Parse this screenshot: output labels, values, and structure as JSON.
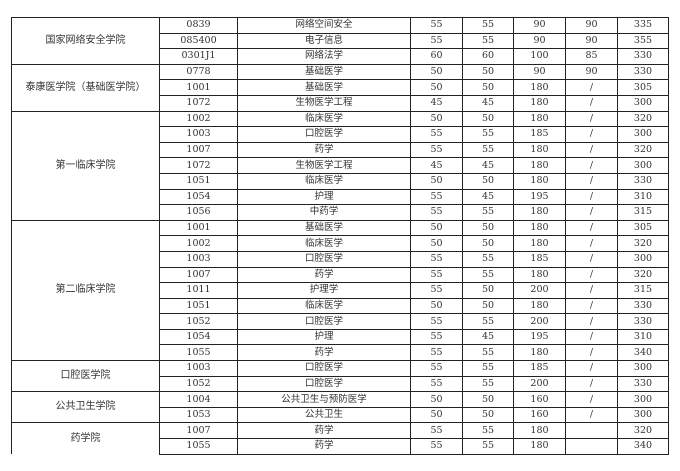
{
  "groups": [
    {
      "college": "国家网络安全学院",
      "rows": [
        [
          "0839",
          "网络空间安全",
          "55",
          "55",
          "90",
          "90",
          "335"
        ],
        [
          "085400",
          "电子信息",
          "55",
          "55",
          "90",
          "90",
          "355"
        ],
        [
          "0301J1",
          "网络法学",
          "60",
          "60",
          "100",
          "85",
          "330"
        ]
      ]
    },
    {
      "college": "泰康医学院（基础医学院）",
      "rows": [
        [
          "0778",
          "基础医学",
          "50",
          "50",
          "90",
          "90",
          "330"
        ],
        [
          "1001",
          "基础医学",
          "50",
          "50",
          "180",
          "/",
          "305"
        ],
        [
          "1072",
          "生物医学工程",
          "45",
          "45",
          "180",
          "/",
          "300"
        ]
      ]
    },
    {
      "college": "第一临床学院",
      "rows": [
        [
          "1002",
          "临床医学",
          "50",
          "50",
          "180",
          "/",
          "320"
        ],
        [
          "1003",
          "口腔医学",
          "55",
          "55",
          "185",
          "/",
          "300"
        ],
        [
          "1007",
          "药学",
          "55",
          "55",
          "180",
          "/",
          "320"
        ],
        [
          "1072",
          "生物医学工程",
          "45",
          "45",
          "180",
          "/",
          "300"
        ],
        [
          "1051",
          "临床医学",
          "50",
          "50",
          "180",
          "/",
          "330"
        ],
        [
          "1054",
          "护理",
          "55",
          "45",
          "195",
          "/",
          "310"
        ],
        [
          "1056",
          "中药学",
          "55",
          "55",
          "180",
          "/",
          "315"
        ]
      ]
    },
    {
      "college": "第二临床学院",
      "rows": [
        [
          "1001",
          "基础医学",
          "50",
          "50",
          "180",
          "/",
          "305"
        ],
        [
          "1002",
          "临床医学",
          "50",
          "50",
          "180",
          "/",
          "320"
        ],
        [
          "1003",
          "口腔医学",
          "55",
          "55",
          "185",
          "/",
          "300"
        ],
        [
          "1007",
          "药学",
          "55",
          "55",
          "180",
          "/",
          "320"
        ],
        [
          "1011",
          "护理学",
          "55",
          "50",
          "200",
          "/",
          "315"
        ],
        [
          "1051",
          "临床医学",
          "50",
          "50",
          "180",
          "/",
          "330"
        ],
        [
          "1052",
          "口腔医学",
          "55",
          "55",
          "200",
          "/",
          "330"
        ],
        [
          "1054",
          "护理",
          "55",
          "45",
          "195",
          "/",
          "310"
        ],
        [
          "1055",
          "药学",
          "55",
          "55",
          "180",
          "/",
          "340"
        ]
      ]
    },
    {
      "college": "口腔医学院",
      "rows": [
        [
          "1003",
          "口腔医学",
          "55",
          "55",
          "185",
          "/",
          "300"
        ],
        [
          "1052",
          "口腔医学",
          "55",
          "55",
          "200",
          "/",
          "330"
        ]
      ]
    },
    {
      "college": "公共卫生学院",
      "rows": [
        [
          "1004",
          "公共卫生与预防医学",
          "50",
          "50",
          "160",
          "/",
          "300"
        ],
        [
          "1053",
          "公共卫生",
          "50",
          "50",
          "160",
          "/",
          "300"
        ]
      ]
    },
    {
      "college": "药学院",
      "rows": [
        [
          "1007",
          "药学",
          "55",
          "55",
          "180",
          "",
          "320"
        ],
        [
          "1055",
          "药学",
          "55",
          "55",
          "180",
          "",
          "340"
        ]
      ]
    }
  ]
}
